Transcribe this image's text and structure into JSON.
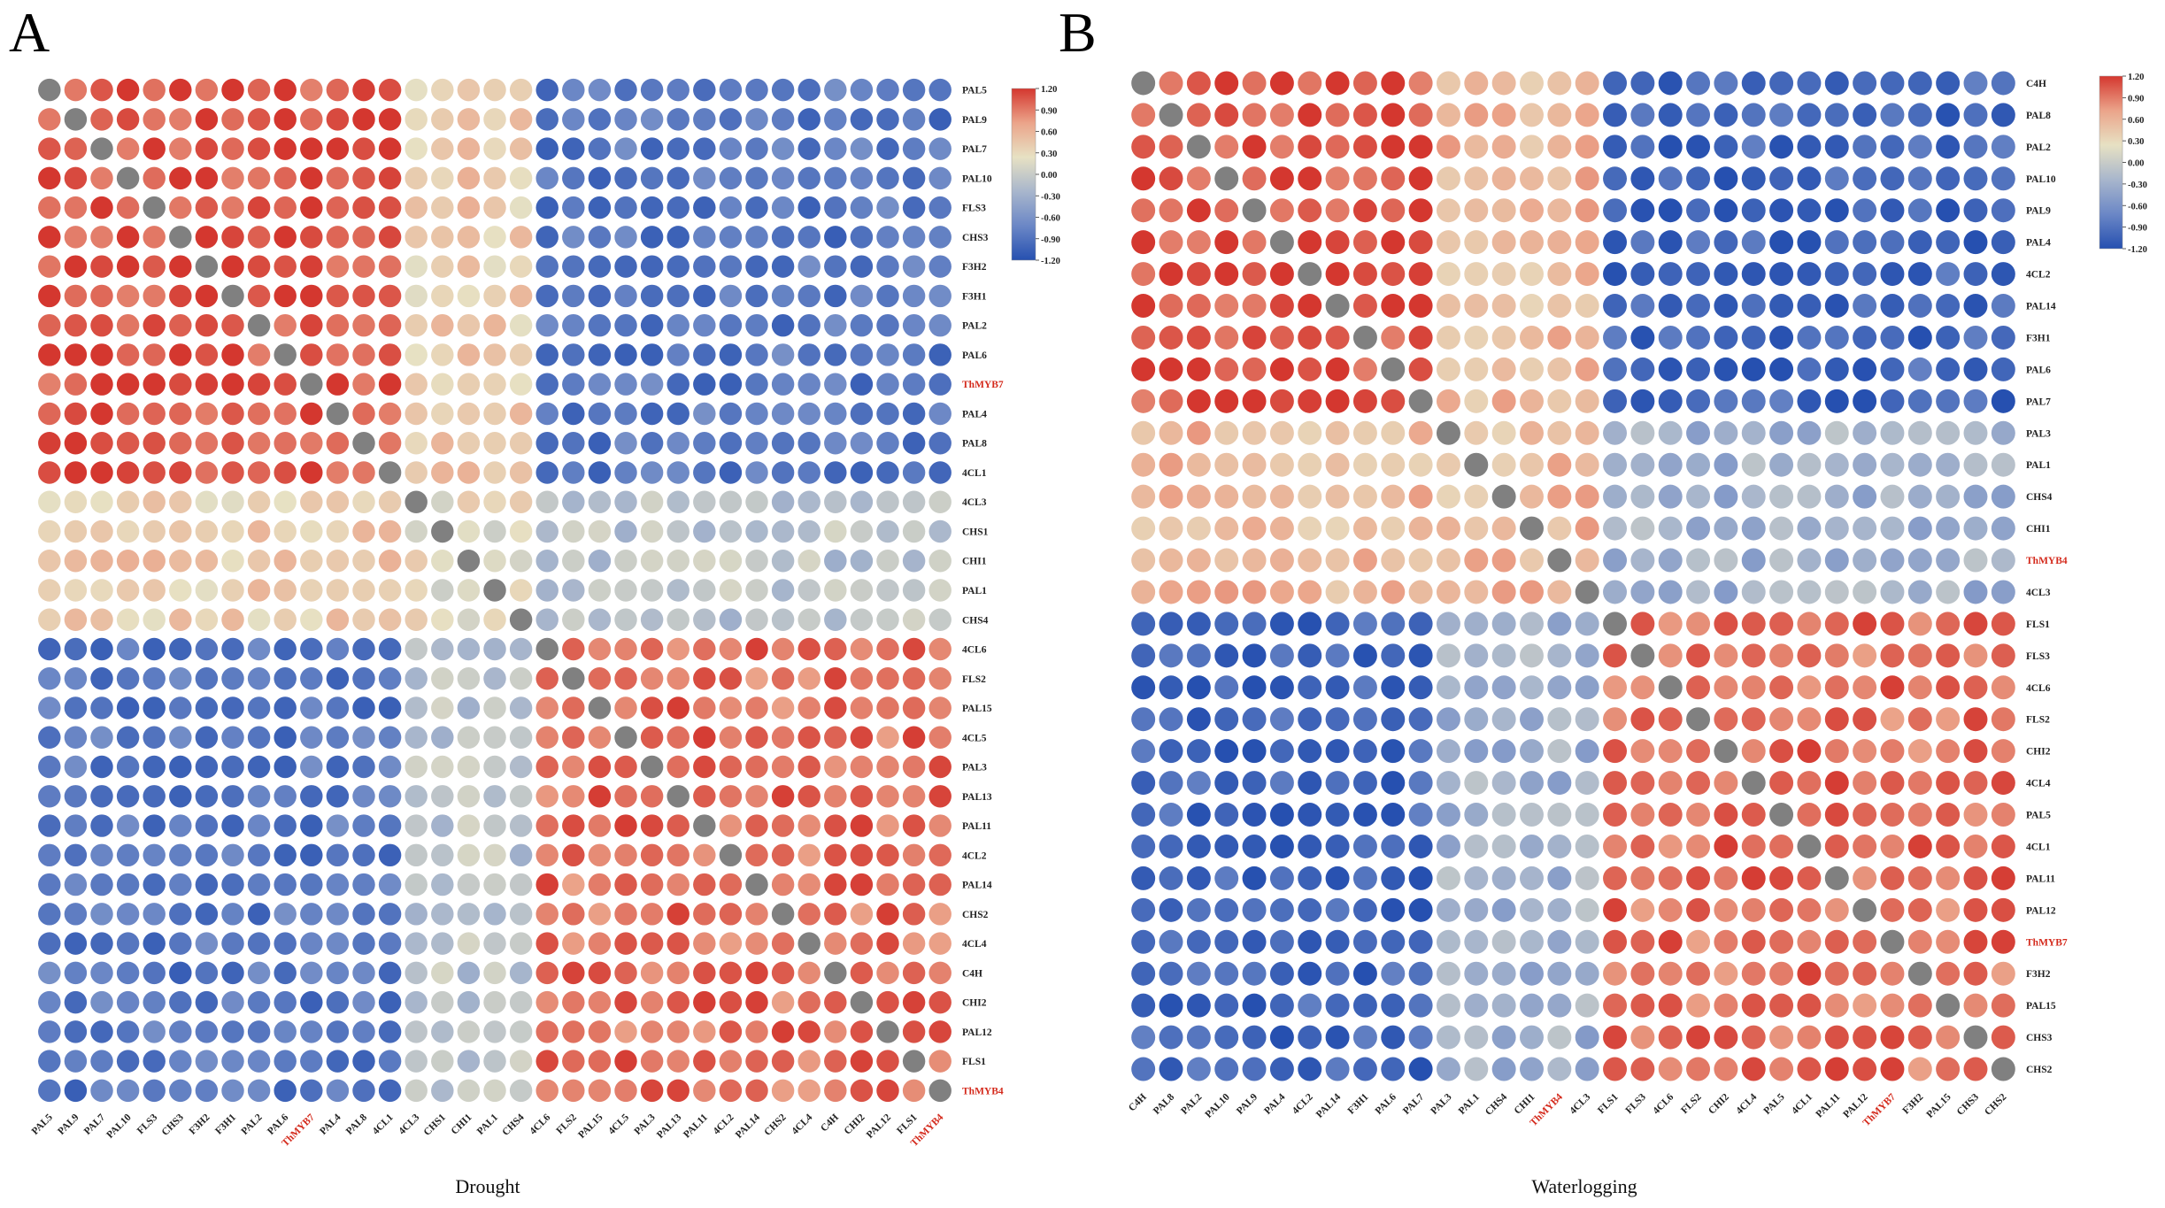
{
  "colors": {
    "scale": [
      "#2650b0",
      "#6b87c6",
      "#a8b6cc",
      "#e7e1c3",
      "#eba48a",
      "#d4372f"
    ],
    "diagonal": "#808080",
    "highlight": "#d42a1c"
  },
  "chart_data": [
    {
      "type": "heatmap",
      "panel_label": "A",
      "title": "Drought",
      "value_range": [
        -1.2,
        1.2
      ],
      "colorbar_ticks": [
        "1.20",
        "0.90",
        "0.60",
        "0.30",
        "0.00",
        "-0.30",
        "-0.60",
        "-0.90",
        "-1.20"
      ],
      "highlight_labels": [
        "ThMYB7",
        "ThMYB4"
      ],
      "row_labels": [
        "PAL5",
        "PAL9",
        "PAL7",
        "PAL10",
        "FLS3",
        "CHS3",
        "F3H2",
        "F3H1",
        "PAL2",
        "PAL6",
        "ThMYB7",
        "PAL4",
        "PAL8",
        "4CL1",
        "4CL3",
        "CHS1",
        "CHI1",
        "PAL1",
        "CHS4",
        "4CL6",
        "FLS2",
        "PAL15",
        "4CL5",
        "PAL3",
        "PAL13",
        "PAL11",
        "4CL2",
        "PAL14",
        "CHS2",
        "4CL4",
        "C4H",
        "CHI2",
        "PAL12",
        "FLS1",
        "ThMYB4"
      ],
      "col_labels": [
        "PAL5",
        "PAL9",
        "PAL7",
        "PAL10",
        "FLS3",
        "CHS3",
        "F3H2",
        "F3H1",
        "PAL2",
        "PAL6",
        "ThMYB7",
        "PAL4",
        "PAL8",
        "4CL1",
        "4CL3",
        "CHS1",
        "CHI1",
        "PAL1",
        "CHS4",
        "4CL6",
        "FLS2",
        "PAL15",
        "4CL5",
        "PAL3",
        "PAL13",
        "PAL11",
        "4CL2",
        "PAL14",
        "CHS2",
        "4CL4",
        "C4H",
        "CHI2",
        "PAL12",
        "FLS1",
        "ThMYB4"
      ],
      "groups": [
        0,
        0,
        0,
        0,
        0,
        0,
        0,
        0,
        0,
        0,
        0,
        0,
        0,
        0,
        1,
        1,
        1,
        1,
        1,
        2,
        2,
        2,
        2,
        2,
        2,
        2,
        2,
        2,
        2,
        2,
        2,
        2,
        2,
        2,
        2
      ],
      "group_sim": [
        [
          1.1,
          0.4,
          -0.85
        ],
        [
          0.4,
          0.2,
          -0.1
        ],
        [
          -0.85,
          -0.1,
          0.95
        ]
      ]
    },
    {
      "type": "heatmap",
      "panel_label": "B",
      "title": "Waterlogging",
      "value_range": [
        -1.2,
        1.2
      ],
      "colorbar_ticks": [
        "1.20",
        "0.90",
        "0.60",
        "0.30",
        "0.00",
        "-0.30",
        "-0.60",
        "-0.90",
        "-1.20"
      ],
      "highlight_labels": [
        "ThMYB4",
        "ThMYB7"
      ],
      "row_labels": [
        "C4H",
        "PAL8",
        "PAL2",
        "PAL10",
        "PAL9",
        "PAL4",
        "4CL2",
        "PAL14",
        "F3H1",
        "PAL6",
        "PAL7",
        "PAL3",
        "PAL1",
        "CHS4",
        "CHI1",
        "ThMYB4",
        "4CL3",
        "FLS1",
        "FLS3",
        "4CL6",
        "FLS2",
        "CHI2",
        "4CL4",
        "PAL5",
        "4CL1",
        "PAL11",
        "PAL12",
        "ThMYB7",
        "F3H2",
        "PAL15",
        "CHS3",
        "CHS2"
      ],
      "col_labels": [
        "C4H",
        "PAL8",
        "PAL2",
        "PAL10",
        "PAL9",
        "PAL4",
        "4CL2",
        "PAL14",
        "F3H1",
        "PAL6",
        "PAL7",
        "PAL3",
        "PAL1",
        "CHS4",
        "CHI1",
        "ThMYB4",
        "4CL3",
        "FLS1",
        "FLS3",
        "4CL6",
        "FLS2",
        "CHI2",
        "4CL4",
        "PAL5",
        "4CL1",
        "PAL11",
        "PAL12",
        "ThMYB7",
        "F3H2",
        "PAL15",
        "CHS3",
        "CHS2"
      ],
      "groups": [
        0,
        0,
        0,
        0,
        0,
        0,
        0,
        0,
        0,
        0,
        0,
        1,
        1,
        1,
        1,
        1,
        1,
        2,
        2,
        2,
        2,
        2,
        2,
        2,
        2,
        2,
        2,
        2,
        2,
        2,
        2,
        2
      ],
      "group_sim": [
        [
          1.1,
          0.55,
          -1.0
        ],
        [
          0.55,
          0.55,
          -0.3
        ],
        [
          -1.0,
          -0.3,
          0.95
        ]
      ]
    }
  ]
}
